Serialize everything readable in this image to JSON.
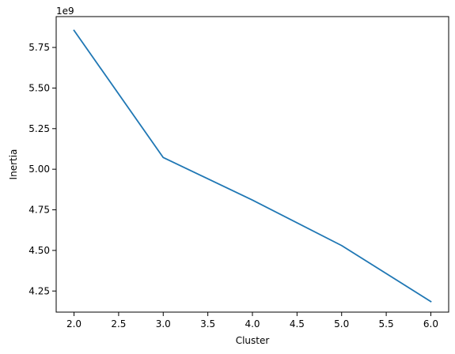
{
  "chart_data": {
    "type": "line",
    "title": "",
    "xlabel": "Cluster",
    "ylabel": "Inertia",
    "y_offset_text": "1e9",
    "y_multiplier": 1000000000,
    "xlim": [
      1.8,
      6.2
    ],
    "ylim": [
      4.12,
      5.94
    ],
    "grid": false,
    "legend": "none",
    "x_ticks": [
      2.0,
      2.5,
      3.0,
      3.5,
      4.0,
      4.5,
      5.0,
      5.5,
      6.0
    ],
    "x_tick_labels": [
      "2.0",
      "2.5",
      "3.0",
      "3.5",
      "4.0",
      "4.5",
      "5.0",
      "5.5",
      "6.0"
    ],
    "y_ticks": [
      4.25,
      4.5,
      4.75,
      5.0,
      5.25,
      5.5,
      5.75
    ],
    "y_tick_labels": [
      "4.25",
      "4.50",
      "4.75",
      "5.00",
      "5.25",
      "5.50",
      "5.75"
    ],
    "series": [
      {
        "color": "#1f77b4",
        "x": [
          2,
          3,
          4,
          5,
          6
        ],
        "y": [
          5.855,
          5.072,
          4.81,
          4.53,
          4.185
        ]
      }
    ]
  }
}
